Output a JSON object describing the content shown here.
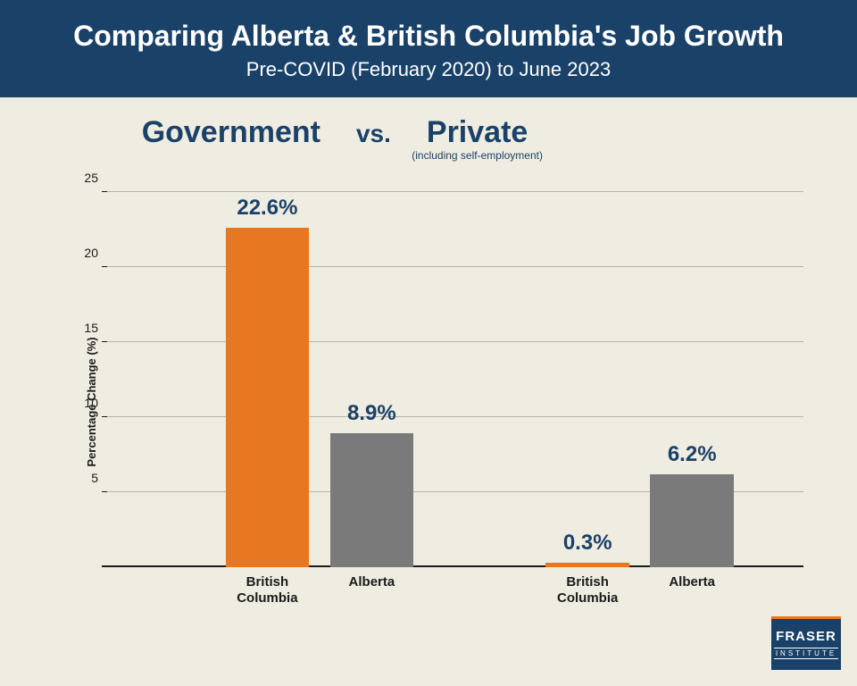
{
  "header": {
    "title": "Comparing Alberta & British Columbia's Job Growth",
    "subtitle": "Pre-COVID (February 2020) to June 2023"
  },
  "sectors": {
    "left": "Government",
    "vs": "vs.",
    "right": "Private",
    "right_note": "(including self-employment)"
  },
  "chart": {
    "type": "bar",
    "y_label": "Percentage Change (%)",
    "ylim_max": 25,
    "ytick_step": 5,
    "gridline_color": "#b8b4a7",
    "baseline_color": "#1b1b1b",
    "background_color": "#efece1",
    "label_color": "#1a4268",
    "axis_font_size": 14,
    "value_font_size": 24,
    "bars": [
      {
        "group": "Government",
        "category_line1": "British",
        "category_line2": "Columbia",
        "value": 22.6,
        "display": "22.6%",
        "color": "#e87722",
        "x_pct": 17,
        "width_pct": 12
      },
      {
        "group": "Government",
        "category_line1": "Alberta",
        "category_line2": "",
        "value": 8.9,
        "display": "8.9%",
        "color": "#7a7a7a",
        "x_pct": 32,
        "width_pct": 12
      },
      {
        "group": "Private",
        "category_line1": "British",
        "category_line2": "Columbia",
        "value": 0.3,
        "display": "0.3%",
        "color": "#e87722",
        "x_pct": 63,
        "width_pct": 12
      },
      {
        "group": "Private",
        "category_line1": "Alberta",
        "category_line2": "",
        "value": 6.2,
        "display": "6.2%",
        "color": "#7a7a7a",
        "x_pct": 78,
        "width_pct": 12
      }
    ]
  },
  "logo": {
    "text1": "FRASER",
    "text2": "INSTITUTE"
  }
}
